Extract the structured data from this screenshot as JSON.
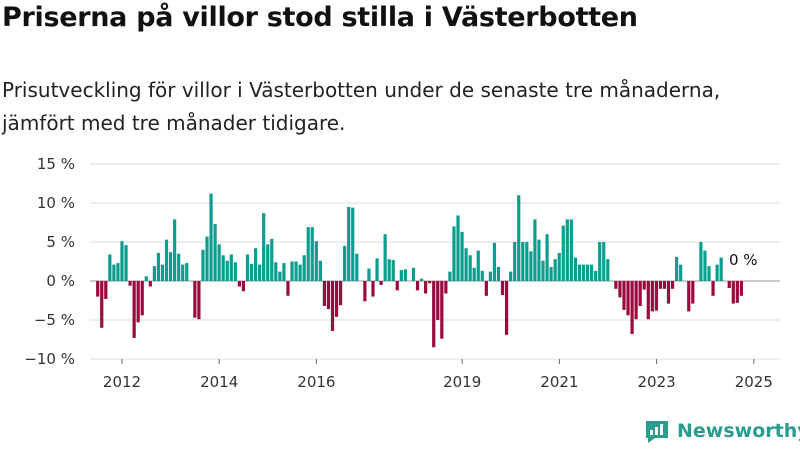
{
  "title": "Priserna på villor stod stilla i Västerbotten",
  "subtitle": "Prisutveckling för villor i Västerbotten under de senaste tre månaderna, jämfört med tre månader tidigare.",
  "brand": {
    "name": "Newsworthy",
    "icon": "newsworthy-logo-icon"
  },
  "colors": {
    "positive": "#0b9e8f",
    "negative": "#9b0a3e",
    "grid": "#dddddd",
    "axis_text": "#333333"
  },
  "chart_data": {
    "type": "bar",
    "ylim": [
      -10,
      15
    ],
    "yticks": [
      15,
      10,
      5,
      0,
      -5,
      -10
    ],
    "ytick_labels": [
      "15 %",
      "10 %",
      "5 %",
      "0 %",
      "−5 %",
      "−10 %"
    ],
    "xticks": [
      2012,
      2014,
      2016,
      2019,
      2021,
      2023,
      2025
    ],
    "xtick_labels": [
      "2012",
      "2014",
      "2016",
      "2019",
      "2021",
      "2023",
      "2025"
    ],
    "x_start": 2011.5,
    "x_step": 0.0833,
    "values": [
      -2,
      -6,
      -2.3,
      3.4,
      2.1,
      2.3,
      5.1,
      4.6,
      -0.6,
      -7.3,
      -5.3,
      -4.4,
      0.6,
      -0.7,
      1.9,
      3.6,
      2.1,
      5.3,
      3.7,
      7.9,
      3.5,
      2.1,
      2.3,
      0,
      -4.7,
      -4.9,
      4.0,
      5.7,
      11.2,
      7.3,
      4.7,
      3.3,
      2.6,
      3.4,
      2.4,
      -0.7,
      -1.3,
      3.4,
      2.2,
      4.2,
      2.1,
      8.7,
      4.7,
      5.4,
      2.4,
      1.2,
      2.3,
      -1.9,
      2.5,
      2.5,
      2.1,
      3.3,
      6.9,
      6.9,
      5.1,
      2.6,
      -3.2,
      -3.6,
      -6.4,
      -4.6,
      -3.1,
      4.5,
      9.5,
      9.4,
      3.5,
      0,
      -2.6,
      1.6,
      -2.0,
      2.9,
      -0.5,
      6.0,
      2.8,
      2.7,
      -1.2,
      1.4,
      1.5,
      0,
      1.7,
      -1.2,
      0.3,
      -1.6,
      -0.3,
      -8.5,
      -5.0,
      -7.4,
      -1.6,
      1.2,
      7.0,
      8.4,
      6.3,
      4.2,
      3.3,
      1.7,
      3.9,
      1.3,
      -1.9,
      1.2,
      4.9,
      1.8,
      -1.8,
      -6.9,
      1.2,
      5.0,
      11.0,
      5.0,
      5.0,
      3.8,
      7.9,
      5.3,
      2.6,
      6.0,
      1.8,
      2.8,
      3.6,
      7.1,
      7.9,
      7.9,
      3.0,
      2.1,
      2.1,
      2.1,
      2.1,
      1.3,
      5.0,
      5.0,
      2.8,
      0,
      -1.0,
      -2.1,
      -3.7,
      -4.4,
      -6.8,
      -4.9,
      -3.2,
      -1.1,
      -4.9,
      -3.9,
      -3.8,
      -1.0,
      -1.0,
      -2.9,
      -1.0,
      3.1,
      2.1,
      0,
      -3.9,
      -2.9,
      0,
      5.0,
      3.9,
      1.9,
      -1.9,
      2.1,
      3.0,
      0,
      -0.9,
      -2.9,
      -2.8,
      -1.9
    ],
    "annotation": "0 %"
  }
}
